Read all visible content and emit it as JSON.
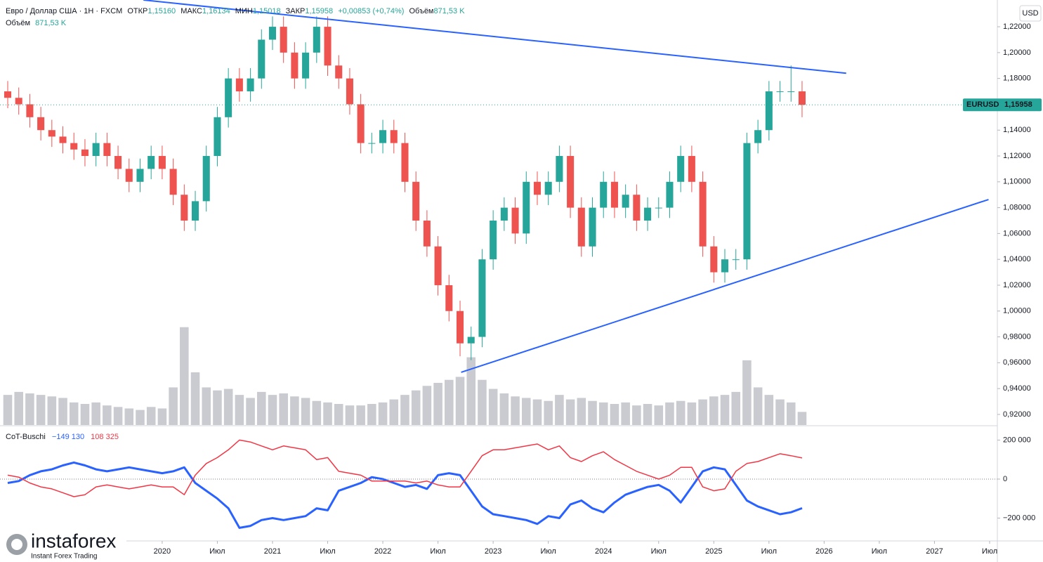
{
  "header": {
    "symbol": "Евро / Доллар США · 1Н · FXCM",
    "ohlc": [
      {
        "label": "ОТКР",
        "value": "1,15160"
      },
      {
        "label": "МАКС",
        "value": "1,16134"
      },
      {
        "label": "МИН",
        "value": "1,15018"
      },
      {
        "label": "ЗАКР",
        "value": "1,15958"
      }
    ],
    "change": "+0,00853 (+0,74%)",
    "volume_label": "Объём",
    "volume_value": "871,53 K",
    "volume_row_label": "Объём",
    "volume_row_value": "871,53 K",
    "currency": "USD"
  },
  "branding": {
    "name": "instaforex",
    "tagline": "Instant Forex Trading"
  },
  "chart_data": [
    {
      "type": "candlestick",
      "symbol_badge": "EURUSD",
      "last_price_label": "1,15958",
      "up_color": "#26a69a",
      "down_color": "#ef5350",
      "xlim": [
        2018.53,
        2027.57
      ],
      "ylim": [
        0.9118,
        1.2407
      ],
      "xticks": [
        2020,
        {
          "value": 2020.5,
          "label": "Июл"
        },
        2021,
        {
          "value": 2021.5,
          "label": "Июл"
        },
        2022,
        {
          "value": 2022.5,
          "label": "Июл"
        },
        2023,
        {
          "value": 2023.5,
          "label": "Июл"
        },
        2024,
        {
          "value": 2024.5,
          "label": "Июл"
        },
        2025,
        {
          "value": 2025.5,
          "label": "Июл"
        },
        2026,
        {
          "value": 2026.5,
          "label": "Июл"
        },
        2027,
        {
          "value": 2027.5,
          "label": "Июл"
        }
      ],
      "yticks": [
        {
          "value": 0.92,
          "label": "0,92000"
        },
        {
          "value": 0.94,
          "label": "0,94000"
        },
        {
          "value": 0.96,
          "label": "0,96000"
        },
        {
          "value": 0.98,
          "label": "0,98000"
        },
        {
          "value": 1.0,
          "label": "1,00000"
        },
        {
          "value": 1.02,
          "label": "1,02000"
        },
        {
          "value": 1.04,
          "label": "1,04000"
        },
        {
          "value": 1.06,
          "label": "1,06000"
        },
        {
          "value": 1.08,
          "label": "1,08000"
        },
        {
          "value": 1.1,
          "label": "1,10000"
        },
        {
          "value": 1.12,
          "label": "1,12000"
        },
        {
          "value": 1.14,
          "label": "1,14000"
        },
        {
          "value": 1.16,
          "label": "1,16000"
        },
        {
          "value": 1.18,
          "label": "1,18000"
        },
        {
          "value": 1.2,
          "label": "1,20000"
        },
        {
          "value": 1.22,
          "label": "1,22000"
        }
      ],
      "x": [
        2018.6,
        2018.7,
        2018.8,
        2018.9,
        2019.0,
        2019.1,
        2019.2,
        2019.3,
        2019.4,
        2019.5,
        2019.6,
        2019.7,
        2019.8,
        2019.9,
        2020.0,
        2020.1,
        2020.2,
        2020.3,
        2020.4,
        2020.5,
        2020.6,
        2020.7,
        2020.8,
        2020.9,
        2021.0,
        2021.1,
        2021.2,
        2021.3,
        2021.4,
        2021.5,
        2021.6,
        2021.7,
        2021.8,
        2021.9,
        2022.0,
        2022.1,
        2022.2,
        2022.3,
        2022.4,
        2022.5,
        2022.6,
        2022.7,
        2022.8,
        2022.9,
        2023.0,
        2023.1,
        2023.2,
        2023.3,
        2023.4,
        2023.5,
        2023.6,
        2023.7,
        2023.8,
        2023.9,
        2024.0,
        2024.1,
        2024.2,
        2024.3,
        2024.4,
        2024.5,
        2024.6,
        2024.7,
        2024.8,
        2024.9,
        2025.0,
        2025.1,
        2025.2,
        2025.3,
        2025.4,
        2025.5,
        2025.6,
        2025.7,
        2025.8
      ],
      "open": [
        1.17,
        1.165,
        1.16,
        1.15,
        1.14,
        1.135,
        1.13,
        1.125,
        1.12,
        1.13,
        1.12,
        1.11,
        1.1,
        1.11,
        1.12,
        1.11,
        1.09,
        1.07,
        1.085,
        1.12,
        1.15,
        1.18,
        1.17,
        1.18,
        1.21,
        1.22,
        1.2,
        1.18,
        1.2,
        1.22,
        1.19,
        1.18,
        1.16,
        1.13,
        1.13,
        1.14,
        1.13,
        1.1,
        1.07,
        1.05,
        1.02,
        1.0,
        0.975,
        0.98,
        1.04,
        1.07,
        1.08,
        1.06,
        1.1,
        1.09,
        1.1,
        1.12,
        1.08,
        1.05,
        1.08,
        1.1,
        1.08,
        1.09,
        1.07,
        1.08,
        1.08,
        1.1,
        1.12,
        1.1,
        1.05,
        1.03,
        1.04,
        1.04,
        1.13,
        1.14,
        1.17,
        1.17,
        1.17
      ],
      "high": [
        1.178,
        1.173,
        1.168,
        1.158,
        1.148,
        1.143,
        1.138,
        1.133,
        1.138,
        1.138,
        1.128,
        1.118,
        1.118,
        1.128,
        1.128,
        1.118,
        1.098,
        1.093,
        1.128,
        1.158,
        1.188,
        1.188,
        1.188,
        1.218,
        1.228,
        1.228,
        1.208,
        1.208,
        1.228,
        1.228,
        1.198,
        1.188,
        1.168,
        1.138,
        1.148,
        1.148,
        1.138,
        1.108,
        1.078,
        1.058,
        1.028,
        1.008,
        0.988,
        1.048,
        1.078,
        1.088,
        1.088,
        1.108,
        1.108,
        1.108,
        1.128,
        1.128,
        1.088,
        1.088,
        1.108,
        1.108,
        1.098,
        1.098,
        1.088,
        1.088,
        1.108,
        1.128,
        1.128,
        1.108,
        1.058,
        1.048,
        1.048,
        1.138,
        1.148,
        1.178,
        1.178,
        1.19,
        1.178
      ],
      "low": [
        1.157,
        1.152,
        1.142,
        1.132,
        1.127,
        1.122,
        1.117,
        1.112,
        1.112,
        1.112,
        1.102,
        1.092,
        1.092,
        1.102,
        1.102,
        1.082,
        1.062,
        1.062,
        1.077,
        1.112,
        1.142,
        1.162,
        1.162,
        1.172,
        1.202,
        1.192,
        1.172,
        1.172,
        1.192,
        1.182,
        1.172,
        1.152,
        1.122,
        1.122,
        1.122,
        1.122,
        1.092,
        1.062,
        1.042,
        1.012,
        0.992,
        0.965,
        0.962,
        0.972,
        1.032,
        1.062,
        1.052,
        1.052,
        1.082,
        1.082,
        1.092,
        1.072,
        1.042,
        1.042,
        1.072,
        1.072,
        1.072,
        1.062,
        1.062,
        1.072,
        1.072,
        1.092,
        1.092,
        1.042,
        1.022,
        1.022,
        1.032,
        1.032,
        1.122,
        1.132,
        1.162,
        1.162,
        1.15
      ],
      "close": [
        1.165,
        1.16,
        1.15,
        1.14,
        1.135,
        1.13,
        1.125,
        1.12,
        1.13,
        1.12,
        1.11,
        1.1,
        1.11,
        1.12,
        1.11,
        1.09,
        1.07,
        1.085,
        1.12,
        1.15,
        1.18,
        1.17,
        1.18,
        1.21,
        1.22,
        1.2,
        1.18,
        1.2,
        1.22,
        1.19,
        1.18,
        1.16,
        1.13,
        1.13,
        1.14,
        1.13,
        1.1,
        1.07,
        1.05,
        1.02,
        1.0,
        0.975,
        0.98,
        1.04,
        1.07,
        1.08,
        1.06,
        1.1,
        1.09,
        1.1,
        1.12,
        1.08,
        1.05,
        1.08,
        1.1,
        1.08,
        1.09,
        1.07,
        1.08,
        1.08,
        1.1,
        1.12,
        1.1,
        1.05,
        1.03,
        1.04,
        1.04,
        1.13,
        1.14,
        1.17,
        1.17,
        1.17,
        1.15958
      ],
      "volume": {
        "color": "#c9cbd1",
        "ylim": [
          0,
          7000
        ],
        "values": [
          2000,
          2200,
          2100,
          2000,
          1900,
          1800,
          1500,
          1400,
          1500,
          1300,
          1200,
          1100,
          1000,
          1200,
          1100,
          2500,
          6500,
          3500,
          2500,
          2300,
          2400,
          2000,
          1800,
          2200,
          2000,
          2100,
          1900,
          1800,
          1600,
          1500,
          1400,
          1300,
          1300,
          1400,
          1500,
          1700,
          2000,
          2300,
          2600,
          2800,
          3000,
          3200,
          4500,
          3000,
          2400,
          2100,
          1900,
          1800,
          1700,
          1600,
          2000,
          1700,
          1800,
          1600,
          1500,
          1400,
          1500,
          1300,
          1400,
          1300,
          1500,
          1600,
          1500,
          1700,
          1900,
          2000,
          2200,
          4300,
          2500,
          2000,
          1700,
          1500,
          871.53
        ]
      },
      "trendlines": [
        {
          "color": "#2962ff",
          "x": [
            2019.83,
            2026.2
          ],
          "y": [
            1.2407,
            1.184
          ]
        },
        {
          "color": "#2962ff",
          "x": [
            2022.71,
            2027.49
          ],
          "y": [
            0.9526,
            1.0863
          ]
        }
      ]
    },
    {
      "type": "line",
      "title": "CoT-Buschi",
      "xlim": [
        2018.53,
        2027.57
      ],
      "ylim": [
        -317000,
        270000
      ],
      "yticks": [
        {
          "value": -200000,
          "label": "−200 000"
        },
        0,
        {
          "value": 200000,
          "label": "200 000"
        }
      ],
      "x": [
        2018.6,
        2018.7,
        2018.8,
        2018.9,
        2019.0,
        2019.1,
        2019.2,
        2019.3,
        2019.4,
        2019.5,
        2019.6,
        2019.7,
        2019.8,
        2019.9,
        2020.0,
        2020.1,
        2020.2,
        2020.3,
        2020.4,
        2020.5,
        2020.6,
        2020.7,
        2020.8,
        2020.9,
        2021.0,
        2021.1,
        2021.2,
        2021.3,
        2021.4,
        2021.5,
        2021.6,
        2021.7,
        2021.8,
        2021.9,
        2022.0,
        2022.1,
        2022.2,
        2022.3,
        2022.4,
        2022.5,
        2022.6,
        2022.7,
        2022.8,
        2022.9,
        2023.0,
        2023.1,
        2023.2,
        2023.3,
        2023.4,
        2023.5,
        2023.6,
        2023.7,
        2023.8,
        2023.9,
        2024.0,
        2024.1,
        2024.2,
        2024.3,
        2024.4,
        2024.5,
        2024.6,
        2024.7,
        2024.8,
        2024.9,
        2025.0,
        2025.1,
        2025.2,
        2025.3,
        2025.4,
        2025.5,
        2025.6,
        2025.7,
        2025.8
      ],
      "series": [
        {
          "color": "#2962ff",
          "width": 3,
          "last_value_label": "−149 130",
          "values": [
            -20000,
            -10000,
            20000,
            40000,
            50000,
            70000,
            85000,
            70000,
            50000,
            40000,
            50000,
            60000,
            50000,
            40000,
            30000,
            40000,
            60000,
            -20000,
            -60000,
            -100000,
            -150000,
            -250000,
            -240000,
            -210000,
            -200000,
            -210000,
            -200000,
            -190000,
            -150000,
            -160000,
            -60000,
            -40000,
            -20000,
            10000,
            0,
            -20000,
            -40000,
            -30000,
            -50000,
            20000,
            30000,
            20000,
            -60000,
            -140000,
            -180000,
            -190000,
            -200000,
            -210000,
            -230000,
            -190000,
            -200000,
            -130000,
            -110000,
            -150000,
            -170000,
            -120000,
            -80000,
            -60000,
            -40000,
            -30000,
            -60000,
            -120000,
            -40000,
            40000,
            60000,
            50000,
            -30000,
            -110000,
            -140000,
            -160000,
            -180000,
            -170000,
            -149130
          ]
        },
        {
          "color": "#f23645",
          "width": 1.5,
          "last_value_label": "108 325",
          "values": [
            20000,
            10000,
            -20000,
            -40000,
            -50000,
            -70000,
            -90000,
            -80000,
            -40000,
            -30000,
            -40000,
            -50000,
            -40000,
            -30000,
            -40000,
            -40000,
            -80000,
            20000,
            80000,
            110000,
            150000,
            200000,
            190000,
            170000,
            150000,
            170000,
            160000,
            150000,
            100000,
            110000,
            40000,
            30000,
            20000,
            -10000,
            -10000,
            -10000,
            -10000,
            -20000,
            -10000,
            -30000,
            -40000,
            -40000,
            40000,
            120000,
            150000,
            150000,
            160000,
            170000,
            180000,
            150000,
            170000,
            110000,
            90000,
            120000,
            140000,
            100000,
            70000,
            40000,
            20000,
            0,
            20000,
            60000,
            60000,
            -40000,
            -60000,
            -50000,
            40000,
            80000,
            90000,
            110000,
            130000,
            120000,
            108325
          ]
        }
      ]
    }
  ]
}
